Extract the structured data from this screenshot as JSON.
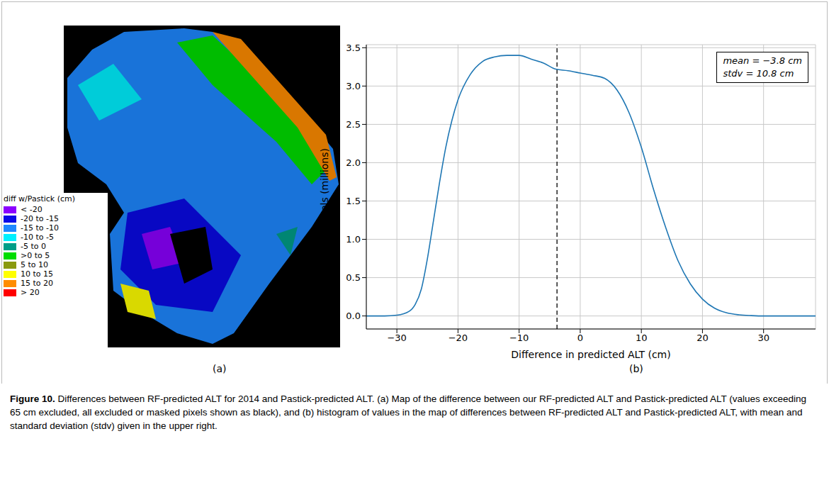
{
  "chart_data": {
    "type": "line",
    "x": [
      -35,
      -32,
      -30,
      -28,
      -27,
      -26,
      -25,
      -24,
      -23,
      -22,
      -21,
      -20,
      -18,
      -16,
      -14,
      -12,
      -10,
      -8,
      -6,
      -4,
      -2,
      0,
      2,
      4,
      6,
      8,
      10,
      12,
      14,
      16,
      18,
      20,
      22,
      24,
      26,
      28,
      30,
      34,
      38.5
    ],
    "values": [
      0.0,
      0.0,
      0.01,
      0.06,
      0.15,
      0.35,
      0.75,
      1.25,
      1.75,
      2.2,
      2.55,
      2.82,
      3.15,
      3.32,
      3.38,
      3.4,
      3.4,
      3.35,
      3.3,
      3.22,
      3.2,
      3.17,
      3.14,
      3.1,
      2.95,
      2.65,
      2.2,
      1.65,
      1.15,
      0.72,
      0.42,
      0.22,
      0.1,
      0.04,
      0.015,
      0.005,
      0.0,
      0.0,
      0.0
    ],
    "color": "#1f77b4",
    "x_label": "Difference in predicted ALT (cm)",
    "y_label": "Pixels (millions)",
    "xlim": [
      -35,
      38.5
    ],
    "ylim": [
      -0.17,
      3.54
    ],
    "xticks": [
      {
        "value": -30,
        "label": "−30"
      },
      {
        "value": -20,
        "label": "−20"
      },
      {
        "value": -10,
        "label": "−10"
      },
      0,
      10,
      20,
      30
    ],
    "yticks": [
      {
        "value": 0,
        "label": "0.0"
      },
      {
        "value": 0.5,
        "label": "0.5"
      },
      {
        "value": 1,
        "label": "1.0"
      },
      {
        "value": 1.5,
        "label": "1.5"
      },
      {
        "value": 2,
        "label": "2.0"
      },
      {
        "value": 2.5,
        "label": "2.5"
      },
      {
        "value": 3,
        "label": "3.0"
      },
      {
        "value": 3.5,
        "label": "3.5"
      }
    ],
    "grid": true,
    "mean_line": -3.8,
    "annotations": [
      "mean = −3.8 cm",
      "stdv = 10.8 cm"
    ]
  },
  "map": {
    "legend_title": "diff w/Pastick (cm)",
    "legend": [
      {
        "label": "< -20",
        "color": "#8b00ff"
      },
      {
        "label": "-20 to -15",
        "color": "#0a0ae6"
      },
      {
        "label": "-15 to -10",
        "color": "#1e88ff"
      },
      {
        "label": "-10 to -5",
        "color": "#00f0ff"
      },
      {
        "label": "-5 to 0",
        "color": "#009e88"
      },
      {
        "label": ">0 to 5",
        "color": "#00dd00"
      },
      {
        "label": "5 to 10",
        "color": "#8a9a10"
      },
      {
        "label": "10 to 15",
        "color": "#ffff00"
      },
      {
        "label": "15 to 20",
        "color": "#ff8c00"
      },
      {
        "label": "> 20",
        "color": "#ff0000"
      }
    ]
  },
  "panel_labels": [
    "(a)",
    "(b)"
  ],
  "caption": {
    "label": "Figure 10.",
    "text": "Differences between RF-predicted ALT for 2014 and Pastick-predicted ALT. (a) Map of the difference between our RF-predicted ALT and Pastick-predicted ALT (values exceeding 65 cm excluded, all excluded or masked pixels shown as black), and (b) histogram of values in the map of differences between RF-predicted ALT and Pastick-predicted ALT, with mean and standard deviation (stdv) given in the upper right."
  }
}
